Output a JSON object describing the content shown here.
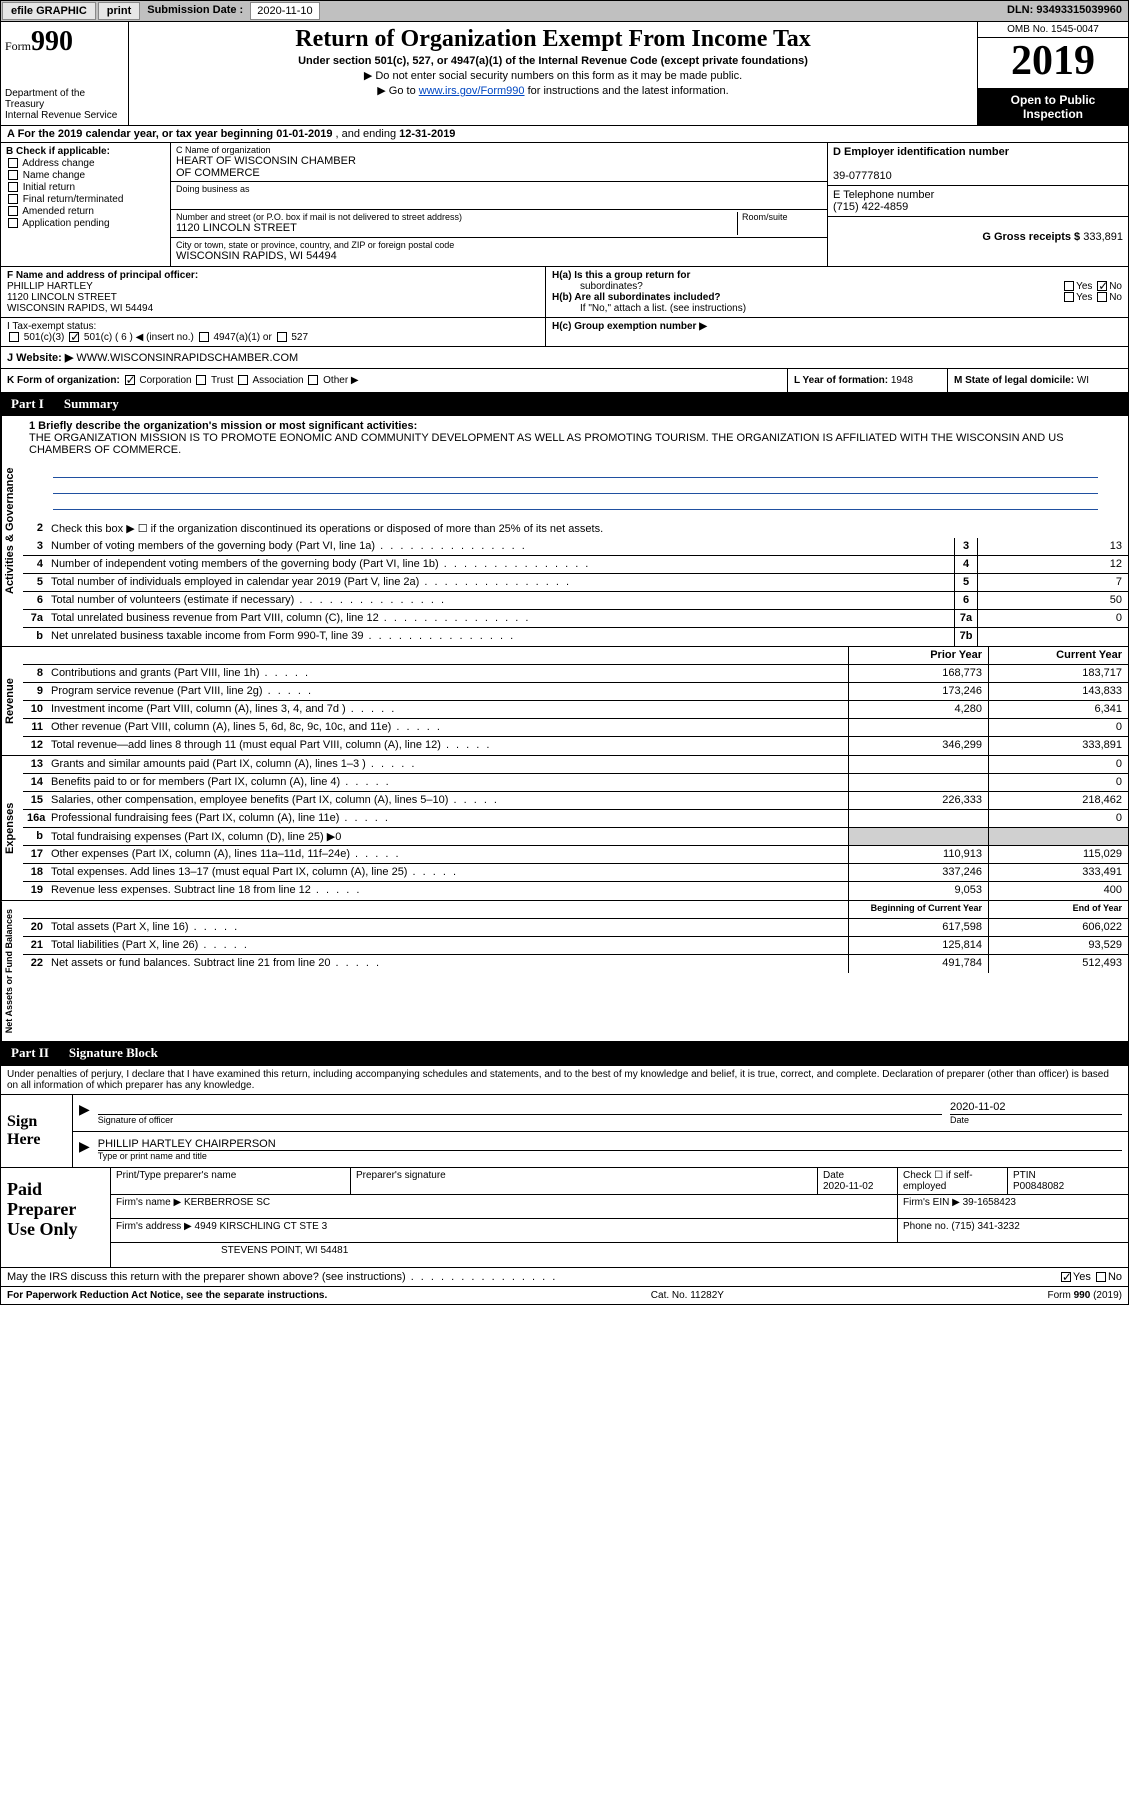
{
  "topbar": {
    "efile": "efile GRAPHIC",
    "print": "print",
    "submission_label": "Submission Date :",
    "submission_date": "2020-11-10",
    "dln_label": "DLN:",
    "dln": "93493315039960"
  },
  "header": {
    "form_prefix": "Form",
    "form_number": "990",
    "dept1": "Department of the Treasury",
    "dept2": "Internal Revenue Service",
    "title": "Return of Organization Exempt From Income Tax",
    "subtitle": "Under section 501(c), 527, or 4947(a)(1) of the Internal Revenue Code (except private foundations)",
    "note1": "▶ Do not enter social security numbers on this form as it may be made public.",
    "note2_pre": "▶ Go to ",
    "note2_link": "www.irs.gov/Form990",
    "note2_post": " for instructions and the latest information.",
    "omb": "OMB No. 1545-0047",
    "year": "2019",
    "open1": "Open to Public",
    "open2": "Inspection"
  },
  "line_a": {
    "text_pre": "A For the 2019 calendar year, or tax year beginning ",
    "begin": "01-01-2019",
    "text_mid": " , and ending ",
    "end": "12-31-2019"
  },
  "section_b": {
    "label": "B Check if applicable:",
    "items": [
      "Address change",
      "Name change",
      "Initial return",
      "Final return/terminated",
      "Amended return",
      "Application pending"
    ]
  },
  "section_c": {
    "name_label": "C Name of organization",
    "name1": "HEART OF WISCONSIN CHAMBER",
    "name2": "OF COMMERCE",
    "dba_label": "Doing business as",
    "addr_label": "Number and street (or P.O. box if mail is not delivered to street address)",
    "room_label": "Room/suite",
    "addr": "1120 LINCOLN STREET",
    "city_label": "City or town, state or province, country, and ZIP or foreign postal code",
    "city": "WISCONSIN RAPIDS, WI  54494"
  },
  "section_d": {
    "ein_label": "D Employer identification number",
    "ein": "39-0777810",
    "phone_label": "E Telephone number",
    "phone": "(715) 422-4859",
    "gross_label": "G Gross receipts $",
    "gross": "333,891"
  },
  "section_f": {
    "label": "F Name and address of principal officer:",
    "name": "PHILLIP HARTLEY",
    "addr1": "1120 LINCOLN STREET",
    "addr2": "WISCONSIN RAPIDS, WI  54494"
  },
  "section_h": {
    "ha": "H(a)  Is this a group return for",
    "ha2": "subordinates?",
    "hb": "H(b)  Are all subordinates included?",
    "hnote": "If \"No,\" attach a list. (see instructions)",
    "hc": "H(c)  Group exemption number ▶",
    "yes": "Yes",
    "no": "No"
  },
  "tax_status": {
    "label": "I   Tax-exempt status:",
    "opt1": "501(c)(3)",
    "opt2_pre": "501(c) (",
    "opt2_val": "6",
    "opt2_post": ") ◀ (insert no.)",
    "opt3": "4947(a)(1) or",
    "opt4": "527"
  },
  "website": {
    "label": "J   Website: ▶",
    "value": "WWW.WISCONSINRAPIDSCHAMBER.COM"
  },
  "section_k": {
    "label": "K Form of organization:",
    "opts": [
      "Corporation",
      "Trust",
      "Association",
      "Other ▶"
    ],
    "l_label": "L Year of formation:",
    "l_val": "1948",
    "m_label": "M State of legal domicile:",
    "m_val": "WI"
  },
  "part1": {
    "num": "Part I",
    "title": "Summary"
  },
  "vtabs": {
    "gov": "Activities & Governance",
    "rev": "Revenue",
    "exp": "Expenses",
    "net": "Net Assets or Fund Balances"
  },
  "mission": {
    "label": "1   Briefly describe the organization's mission or most significant activities:",
    "text": "THE ORGANIZATION MISSION IS TO PROMOTE EONOMIC AND COMMUNITY DEVELOPMENT AS WELL AS PROMOTING TOURISM. THE ORGANIZATION IS AFFILIATED WITH THE WISCONSIN AND US CHAMBERS OF COMMERCE."
  },
  "gov_rows": [
    {
      "n": "2",
      "t": "Check this box ▶ ☐ if the organization discontinued its operations or disposed of more than 25% of its net assets."
    },
    {
      "n": "3",
      "t": "Number of voting members of the governing body (Part VI, line 1a)",
      "box": "3",
      "v": "13"
    },
    {
      "n": "4",
      "t": "Number of independent voting members of the governing body (Part VI, line 1b)",
      "box": "4",
      "v": "12"
    },
    {
      "n": "5",
      "t": "Total number of individuals employed in calendar year 2019 (Part V, line 2a)",
      "box": "5",
      "v": "7"
    },
    {
      "n": "6",
      "t": "Total number of volunteers (estimate if necessary)",
      "box": "6",
      "v": "50"
    },
    {
      "n": "7a",
      "t": "Total unrelated business revenue from Part VIII, column (C), line 12",
      "box": "7a",
      "v": "0"
    },
    {
      "n": "b",
      "t": "Net unrelated business taxable income from Form 990-T, line 39",
      "box": "7b",
      "v": ""
    }
  ],
  "colhdrs": {
    "prior": "Prior Year",
    "current": "Current Year",
    "begin": "Beginning of Current Year",
    "end": "End of Year"
  },
  "rev_rows": [
    {
      "n": "8",
      "t": "Contributions and grants (Part VIII, line 1h)",
      "p": "168,773",
      "c": "183,717"
    },
    {
      "n": "9",
      "t": "Program service revenue (Part VIII, line 2g)",
      "p": "173,246",
      "c": "143,833"
    },
    {
      "n": "10",
      "t": "Investment income (Part VIII, column (A), lines 3, 4, and 7d )",
      "p": "4,280",
      "c": "6,341"
    },
    {
      "n": "11",
      "t": "Other revenue (Part VIII, column (A), lines 5, 6d, 8c, 9c, 10c, and 11e)",
      "p": "",
      "c": "0"
    },
    {
      "n": "12",
      "t": "Total revenue—add lines 8 through 11 (must equal Part VIII, column (A), line 12)",
      "p": "346,299",
      "c": "333,891"
    }
  ],
  "exp_rows": [
    {
      "n": "13",
      "t": "Grants and similar amounts paid (Part IX, column (A), lines 1–3 )",
      "p": "",
      "c": "0"
    },
    {
      "n": "14",
      "t": "Benefits paid to or for members (Part IX, column (A), line 4)",
      "p": "",
      "c": "0"
    },
    {
      "n": "15",
      "t": "Salaries, other compensation, employee benefits (Part IX, column (A), lines 5–10)",
      "p": "226,333",
      "c": "218,462"
    },
    {
      "n": "16a",
      "t": "Professional fundraising fees (Part IX, column (A), line 11e)",
      "p": "",
      "c": "0"
    },
    {
      "n": "b",
      "t": "Total fundraising expenses (Part IX, column (D), line 25) ▶0",
      "gray": true
    },
    {
      "n": "17",
      "t": "Other expenses (Part IX, column (A), lines 11a–11d, 11f–24e)",
      "p": "110,913",
      "c": "115,029"
    },
    {
      "n": "18",
      "t": "Total expenses. Add lines 13–17 (must equal Part IX, column (A), line 25)",
      "p": "337,246",
      "c": "333,491"
    },
    {
      "n": "19",
      "t": "Revenue less expenses. Subtract line 18 from line 12",
      "p": "9,053",
      "c": "400"
    }
  ],
  "net_rows": [
    {
      "n": "20",
      "t": "Total assets (Part X, line 16)",
      "p": "617,598",
      "c": "606,022"
    },
    {
      "n": "21",
      "t": "Total liabilities (Part X, line 26)",
      "p": "125,814",
      "c": "93,529"
    },
    {
      "n": "22",
      "t": "Net assets or fund balances. Subtract line 21 from line 20",
      "p": "491,784",
      "c": "512,493"
    }
  ],
  "part2": {
    "num": "Part II",
    "title": "Signature Block"
  },
  "penalties": "Under penalties of perjury, I declare that I have examined this return, including accompanying schedules and statements, and to the best of my knowledge and belief, it is true, correct, and complete. Declaration of preparer (other than officer) is based on all information of which preparer has any knowledge.",
  "sign": {
    "here": "Sign Here",
    "sig_officer": "Signature of officer",
    "date_label": "Date",
    "date": "2020-11-02",
    "name": "PHILLIP HARTLEY CHAIRPERSON",
    "type_label": "Type or print name and title"
  },
  "prep": {
    "label": "Paid Preparer Use Only",
    "print_label": "Print/Type preparer's name",
    "sig_label": "Preparer's signature",
    "date_label": "Date",
    "date": "2020-11-02",
    "check_label": "Check ☐ if self-employed",
    "ptin_label": "PTIN",
    "ptin": "P00848082",
    "firm_label": "Firm's name    ▶",
    "firm": "KERBERROSE SC",
    "ein_label": "Firm's EIN ▶",
    "ein": "39-1658423",
    "addr_label": "Firm's address ▶",
    "addr1": "4949 KIRSCHLING CT STE 3",
    "addr2": "STEVENS POINT, WI  54481",
    "phone_label": "Phone no.",
    "phone": "(715) 341-3232",
    "discuss": "May the IRS discuss this return with the preparer shown above? (see instructions)",
    "yes": "Yes",
    "no": "No"
  },
  "footer": {
    "left": "For Paperwork Reduction Act Notice, see the separate instructions.",
    "mid": "Cat. No. 11282Y",
    "right": "Form 990 (2019)"
  }
}
